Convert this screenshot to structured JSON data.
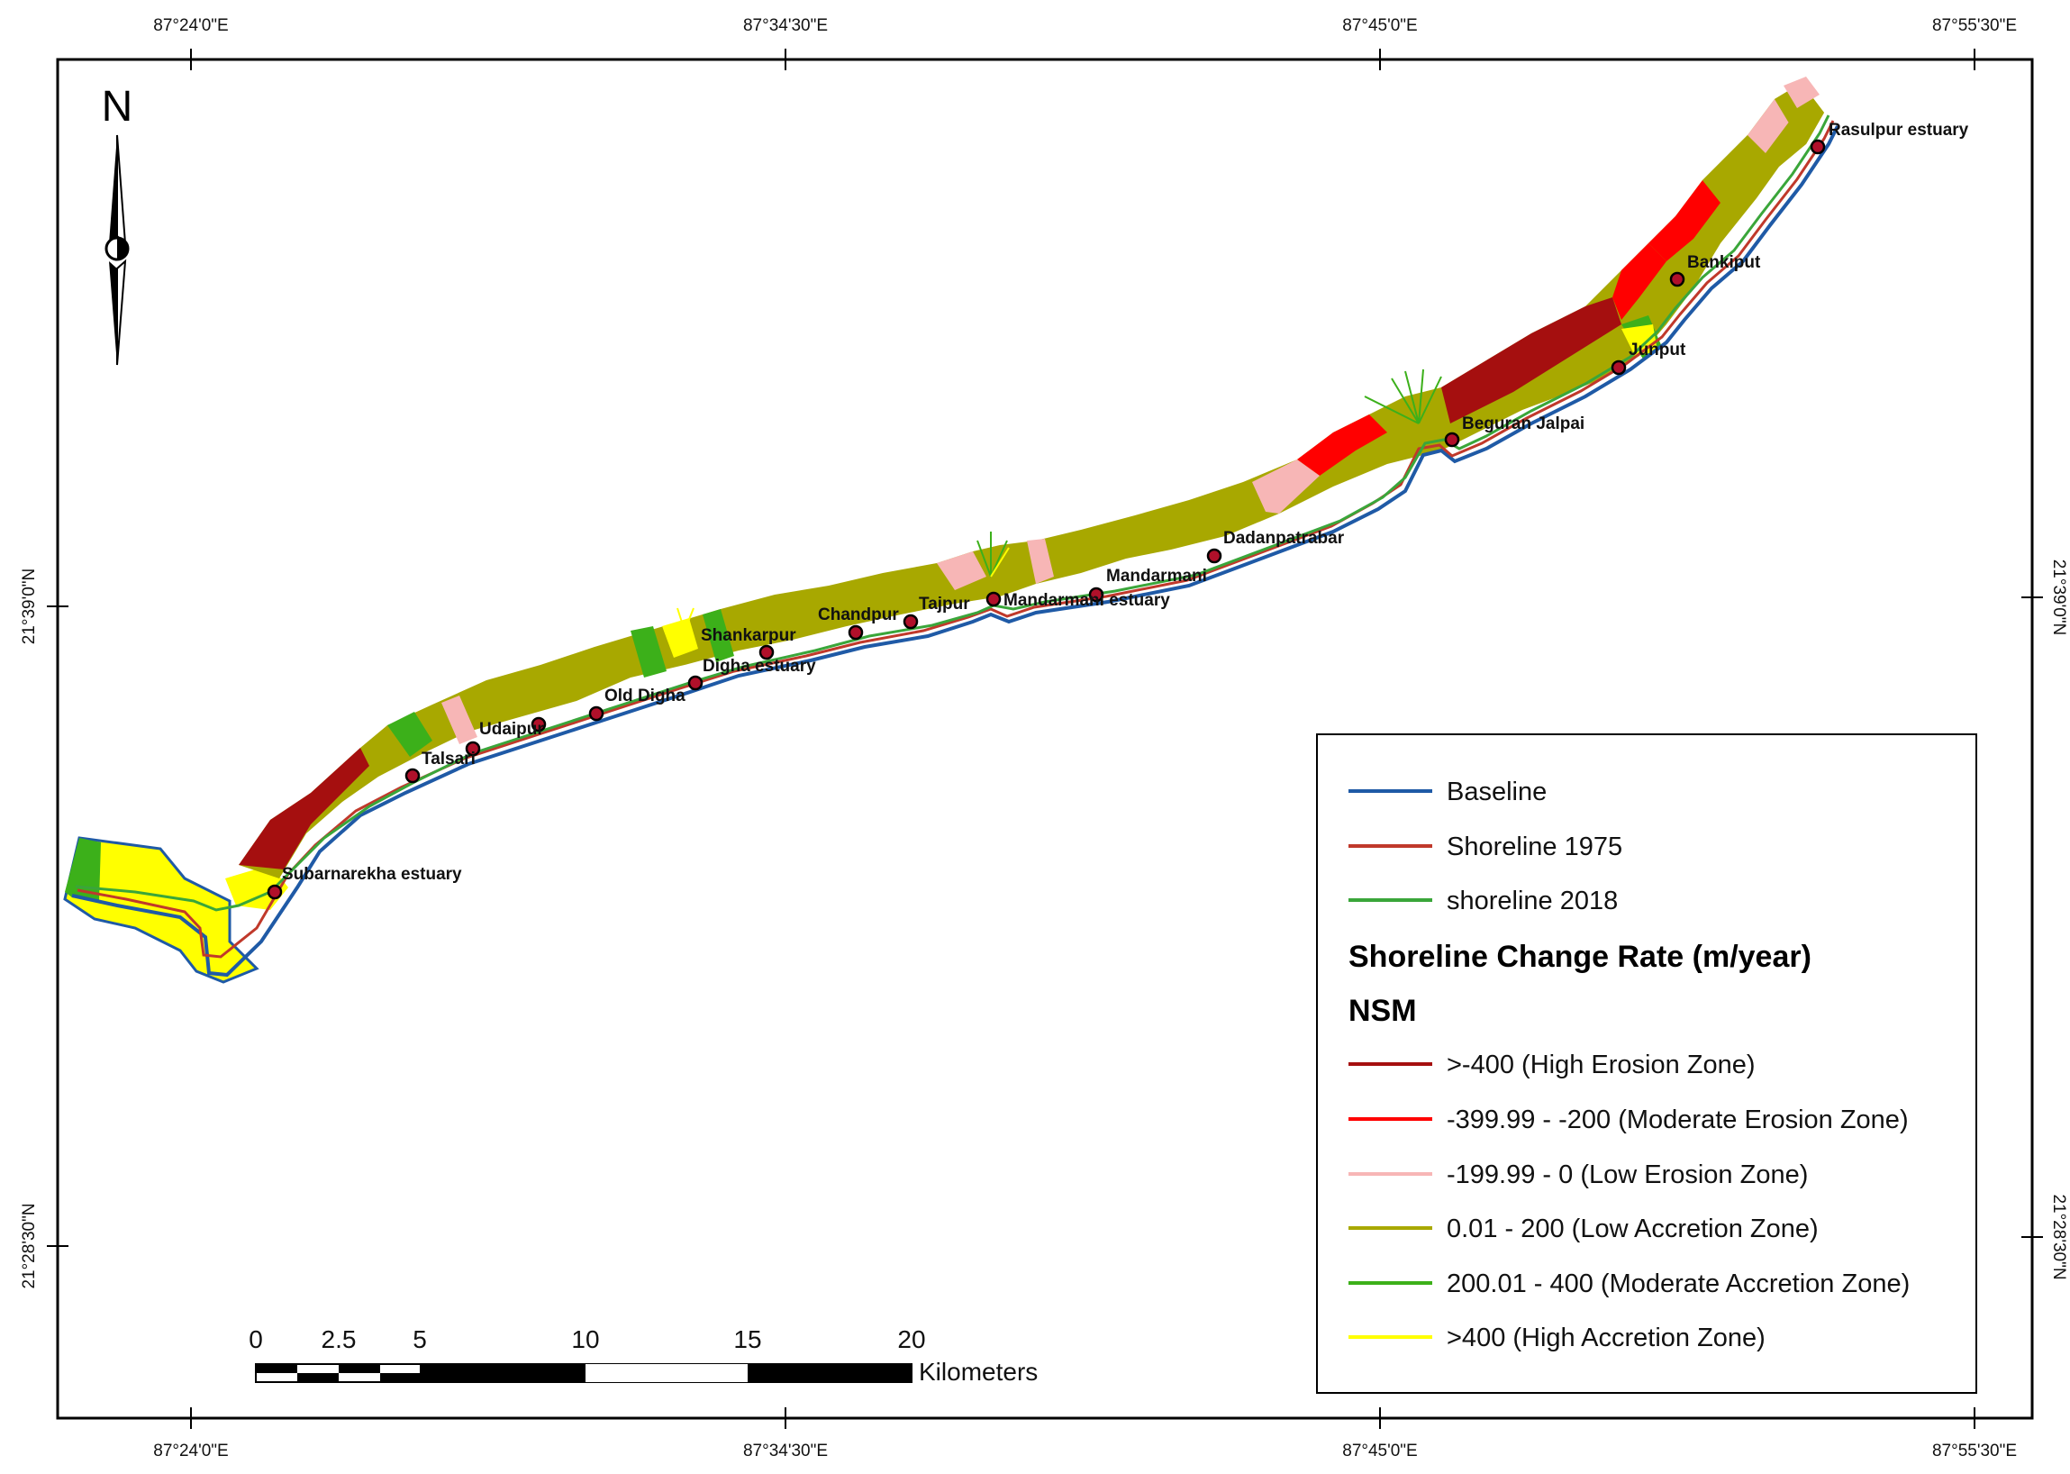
{
  "map": {
    "top_longitudes": [
      "87°24'0\"E",
      "87°34'30\"E",
      "87°45'0\"E",
      "87°55'30\"E"
    ],
    "bottom_longitudes": [
      "87°24'0\"E",
      "87°34'30\"E",
      "87°45'0\"E",
      "87°55'30\"E"
    ],
    "left_latitudes": [
      "21°39'0\"N",
      "21°28'30\"N"
    ],
    "right_latitudes": [
      "21°39'0\"N",
      "21°28'30\"N"
    ],
    "north_label": "N",
    "places": [
      "Rasulpur estuary",
      "Bankiput",
      "Junput",
      "Beguran Jalpai",
      "Dadanpatrabar",
      "Mandarmani",
      "Mandarmani estuary",
      "Tajpur",
      "Chandpur",
      "Shankarpur",
      "Digha estuary",
      "Old Digha",
      "Udaipur",
      "Talsari",
      "Subarnarekha estuary"
    ]
  },
  "legend": {
    "lines": [
      {
        "label": "Baseline",
        "color": "#1f5aa6"
      },
      {
        "label": "Shoreline 1975",
        "color": "#c0392b"
      },
      {
        "label": "shoreline 2018",
        "color": "#3aa63a"
      }
    ],
    "title": "Shoreline Change Rate (m/year)",
    "subtitle": "NSM",
    "classes": [
      {
        "label": ">-400 (High Erosion Zone)",
        "color": "#a50f0f"
      },
      {
        "label": "-399.99 - -200 (Moderate Erosion Zone)",
        "color": "#ff0000"
      },
      {
        "label": "-199.99 - 0 (Low Erosion Zone)",
        "color": "#f7b6b6"
      },
      {
        "label": "0.01 - 200 (Low Accretion Zone)",
        "color": "#a8a800"
      },
      {
        "label": "200.01 - 400 (Moderate Accretion Zone)",
        "color": "#3cb01a"
      },
      {
        "label": ">400 (High Accretion Zone)",
        "color": "#ffff00"
      }
    ]
  },
  "scale": {
    "ticks": [
      "0",
      "2.5",
      "5",
      "10",
      "15",
      "20"
    ],
    "unit": "Kilometers"
  }
}
